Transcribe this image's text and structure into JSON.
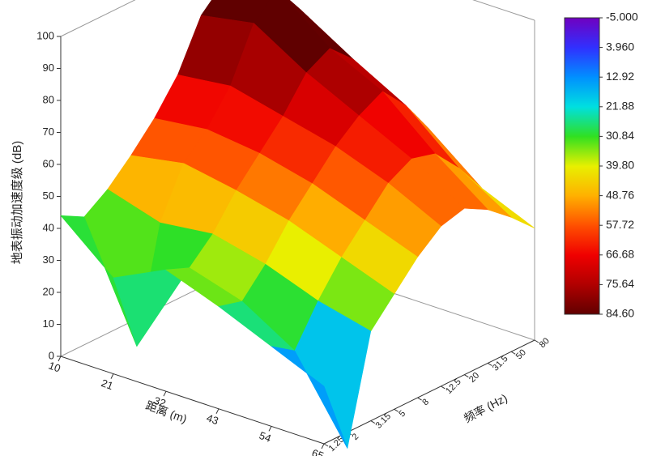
{
  "chart_data": {
    "type": "surface",
    "zlabel": "地表振动加速度级 (dB)",
    "xlabel": "距离 (m)",
    "ylabel": "频率 (Hz)",
    "x": [
      10,
      21,
      32,
      43,
      54,
      65
    ],
    "xticks": [
      10,
      21,
      32,
      43,
      54,
      65
    ],
    "xlim": [
      10,
      65
    ],
    "categories": [
      "1.25",
      "2",
      "3.15",
      "5",
      "8",
      "12.5",
      "20",
      "31.5",
      "50",
      "80"
    ],
    "z": [
      [
        44,
        40,
        45,
        52,
        60,
        70,
        85,
        92,
        80,
        70
      ],
      [
        30,
        5,
        40,
        55,
        62,
        72,
        88,
        95,
        85,
        72
      ],
      [
        38,
        35,
        42,
        52,
        60,
        68,
        78,
        82,
        75,
        62
      ],
      [
        32,
        30,
        38,
        48,
        56,
        64,
        70,
        74,
        66,
        55
      ],
      [
        25,
        20,
        32,
        42,
        50,
        58,
        62,
        60,
        52,
        42
      ],
      [
        18,
        -5,
        28,
        36,
        44,
        50,
        52,
        48,
        42,
        35
      ]
    ],
    "zlim": [
      0,
      100
    ],
    "zticks": [
      0,
      10,
      20,
      30,
      40,
      50,
      60,
      70,
      80,
      90,
      100
    ],
    "colorbar_ticks": [
      {
        "value": -5,
        "label": "-5.000"
      },
      {
        "value": 3.96,
        "label": "3.960"
      },
      12.92,
      21.88,
      30.84,
      {
        "value": 39.8,
        "label": "39.80"
      },
      48.76,
      57.72,
      66.68,
      75.64,
      {
        "value": 84.6,
        "label": "84.60"
      }
    ],
    "colorbar_colors": [
      "#7000c0",
      "#3030ff",
      "#0090ff",
      "#00e0e0",
      "#30e020",
      "#e8f000",
      "#ffb000",
      "#ff5000",
      "#f00000",
      "#b00000",
      "#600000"
    ]
  }
}
